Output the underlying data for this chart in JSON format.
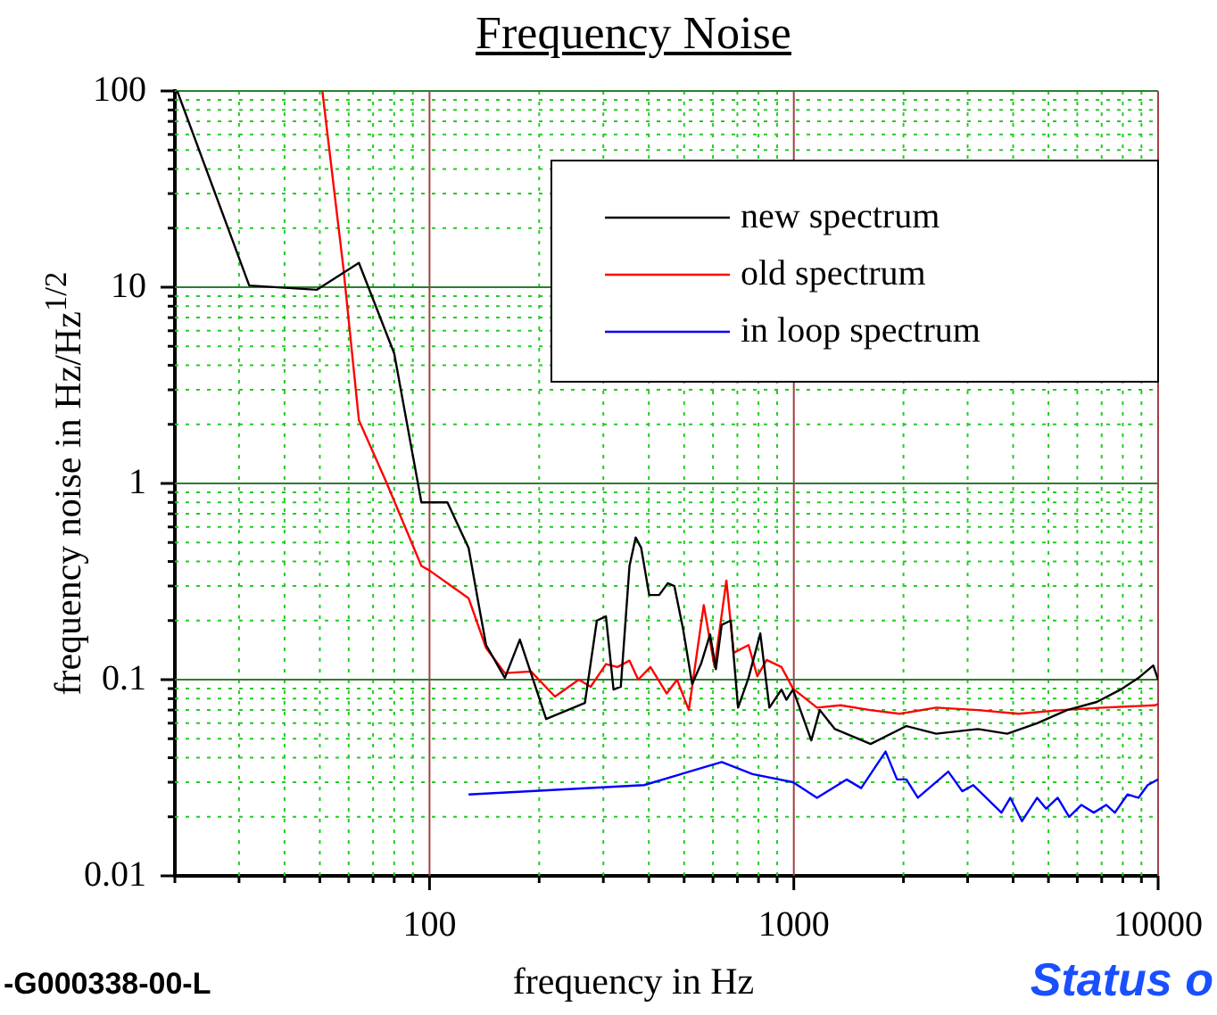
{
  "chart_data": {
    "type": "line",
    "title": "Frequency Noise",
    "xlabel": "frequency in Hz",
    "ylabel": "frequency noise in Hz/Hz$^{1/2}$",
    "annotations": [
      "-G000338-00-L",
      "Status o"
    ],
    "log": "xy",
    "grid": true,
    "legend": "top right",
    "marker": "none",
    "line_style": "solid",
    "xlim": [
      20,
      10000
    ],
    "ylim": [
      0.01,
      100
    ],
    "xticks": [
      {
        "value": 20,
        "label": null
      },
      {
        "value": 30,
        "label": null
      },
      {
        "value": 40,
        "label": null
      },
      {
        "value": 50,
        "label": null
      },
      {
        "value": 60,
        "label": null
      },
      {
        "value": 70,
        "label": null
      },
      {
        "value": 80,
        "label": null
      },
      {
        "value": 90,
        "label": null
      },
      100,
      {
        "value": 200,
        "label": null
      },
      {
        "value": 300,
        "label": null
      },
      {
        "value": 400,
        "label": null
      },
      {
        "value": 500,
        "label": null
      },
      {
        "value": 600,
        "label": null
      },
      {
        "value": 700,
        "label": null
      },
      {
        "value": 800,
        "label": null
      },
      {
        "value": 900,
        "label": null
      },
      1000,
      {
        "value": 2000,
        "label": null
      },
      {
        "value": 3000,
        "label": null
      },
      {
        "value": 4000,
        "label": null
      },
      {
        "value": 5000,
        "label": null
      },
      {
        "value": 6000,
        "label": null
      },
      {
        "value": 7000,
        "label": null
      },
      {
        "value": 8000,
        "label": null
      },
      {
        "value": 9000,
        "label": null
      },
      10000
    ],
    "yticks": [
      0.01,
      {
        "value": 0.02,
        "label": null
      },
      {
        "value": 0.03,
        "label": null
      },
      {
        "value": 0.04,
        "label": null
      },
      {
        "value": 0.05,
        "label": null
      },
      {
        "value": 0.06,
        "label": null
      },
      {
        "value": 0.07,
        "label": null
      },
      {
        "value": 0.08,
        "label": null
      },
      {
        "value": 0.09,
        "label": null
      },
      0.1,
      {
        "value": 0.2,
        "label": null
      },
      {
        "value": 0.3,
        "label": null
      },
      {
        "value": 0.4,
        "label": null
      },
      {
        "value": 0.5,
        "label": null
      },
      {
        "value": 0.6,
        "label": null
      },
      {
        "value": 0.7,
        "label": null
      },
      {
        "value": 0.8,
        "label": null
      },
      {
        "value": 0.9,
        "label": null
      },
      1,
      {
        "value": 2,
        "label": null
      },
      {
        "value": 3,
        "label": null
      },
      {
        "value": 4,
        "label": null
      },
      {
        "value": 5,
        "label": null
      },
      {
        "value": 6,
        "label": null
      },
      {
        "value": 7,
        "label": null
      },
      {
        "value": 8,
        "label": null
      },
      {
        "value": 9,
        "label": null
      },
      10,
      {
        "value": 20,
        "label": null
      },
      {
        "value": 30,
        "label": null
      },
      {
        "value": 40,
        "label": null
      },
      {
        "value": 50,
        "label": null
      },
      {
        "value": 60,
        "label": null
      },
      {
        "value": 70,
        "label": null
      },
      {
        "value": 80,
        "label": null
      },
      {
        "value": 90,
        "label": null
      },
      100
    ],
    "series": [
      {
        "name": "new spectrum",
        "color": "#000000",
        "x": [
          20.3,
          32,
          49,
          64,
          80,
          95,
          112,
          128,
          136,
          143,
          161,
          177,
          209,
          267,
          288,
          305,
          320,
          335,
          354,
          368,
          381,
          401,
          427,
          451,
          470,
          497,
          526,
          556,
          589,
          611,
          634,
          671,
          703,
          751,
          809,
          857,
          925,
          954,
          995,
          1117,
          1178,
          1297,
          1625,
          2037,
          2459,
          3201,
          3854,
          4656,
          5623,
          6790,
          7889,
          8830,
          9700,
          10000
        ],
        "values": [
          100,
          10.2,
          9.7,
          13.3,
          4.6,
          0.8,
          0.8,
          0.47,
          0.25,
          0.15,
          0.102,
          0.16,
          0.063,
          0.076,
          0.2,
          0.21,
          0.089,
          0.092,
          0.38,
          0.53,
          0.47,
          0.27,
          0.27,
          0.31,
          0.3,
          0.18,
          0.095,
          0.12,
          0.17,
          0.113,
          0.19,
          0.2,
          0.072,
          0.102,
          0.172,
          0.072,
          0.089,
          0.079,
          0.089,
          0.049,
          0.07,
          0.056,
          0.047,
          0.058,
          0.053,
          0.056,
          0.053,
          0.06,
          0.07,
          0.077,
          0.089,
          0.102,
          0.118,
          0.1
        ]
      },
      {
        "name": "old spectrum",
        "color": "#ff0000",
        "x": [
          50.8,
          58,
          64,
          76,
          95,
          100,
          128,
          143,
          161,
          190,
          221,
          257,
          277,
          305,
          328,
          354,
          374,
          404,
          448,
          478,
          515,
          566,
          606,
          653,
          684,
          751,
          794,
          842,
          925,
          995,
          1158,
          1345,
          1620,
          1950,
          2459,
          3200,
          4140,
          5420,
          7060,
          9800,
          10000
        ],
        "values": [
          100,
          12.6,
          2.1,
          1.02,
          0.38,
          0.36,
          0.26,
          0.145,
          0.108,
          0.11,
          0.082,
          0.1,
          0.092,
          0.12,
          0.116,
          0.125,
          0.1,
          0.116,
          0.085,
          0.1,
          0.07,
          0.24,
          0.116,
          0.32,
          0.137,
          0.15,
          0.104,
          0.126,
          0.116,
          0.09,
          0.072,
          0.074,
          0.07,
          0.067,
          0.072,
          0.07,
          0.067,
          0.07,
          0.072,
          0.074,
          0.075
        ]
      },
      {
        "name": "in loop spectrum",
        "color": "#0000ff",
        "x": [
          128,
          388,
          634,
          770,
          995,
          1158,
          1396,
          1531,
          1786,
          1920,
          2037,
          2190,
          2655,
          2900,
          3110,
          3715,
          3930,
          4230,
          4656,
          4930,
          5300,
          5700,
          6160,
          6660,
          7200,
          7610,
          8240,
          8830,
          9360,
          10000
        ],
        "values": [
          0.026,
          0.029,
          0.038,
          0.033,
          0.03,
          0.025,
          0.031,
          0.028,
          0.043,
          0.031,
          0.031,
          0.025,
          0.034,
          0.027,
          0.029,
          0.021,
          0.025,
          0.019,
          0.025,
          0.022,
          0.025,
          0.02,
          0.023,
          0.021,
          0.023,
          0.021,
          0.026,
          0.025,
          0.029,
          0.031
        ]
      }
    ]
  }
}
